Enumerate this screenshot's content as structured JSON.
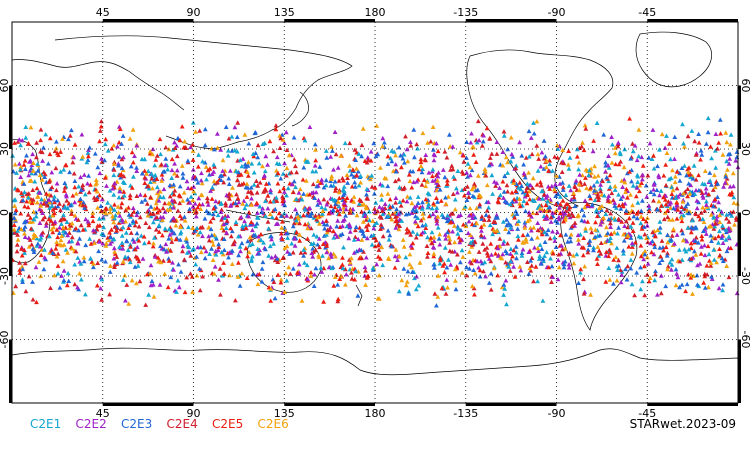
{
  "chart_data": {
    "type": "scatter",
    "projection": "equirectangular",
    "x_ticks": [
      45,
      90,
      135,
      180,
      -135,
      -90,
      -45
    ],
    "y_ticks": [
      60,
      30,
      0,
      -30,
      -60
    ],
    "grid": true,
    "grid_style": "dotted",
    "marker": "triangle",
    "lon_range": [
      0,
      360
    ],
    "lat_range": [
      -90,
      90
    ],
    "observation_band": [
      -45,
      45
    ],
    "series": [
      {
        "name": "C2E1",
        "color": "#12a6d0"
      },
      {
        "name": "C2E2",
        "color": "#a020c8"
      },
      {
        "name": "C2E3",
        "color": "#1f66d6"
      },
      {
        "name": "C2E4",
        "color": "#d21e2a"
      },
      {
        "name": "C2E5",
        "color": "#ec1d10"
      },
      {
        "name": "C2E6",
        "color": "#f2a10c"
      }
    ],
    "source_label": "STARwet.2023-09"
  }
}
